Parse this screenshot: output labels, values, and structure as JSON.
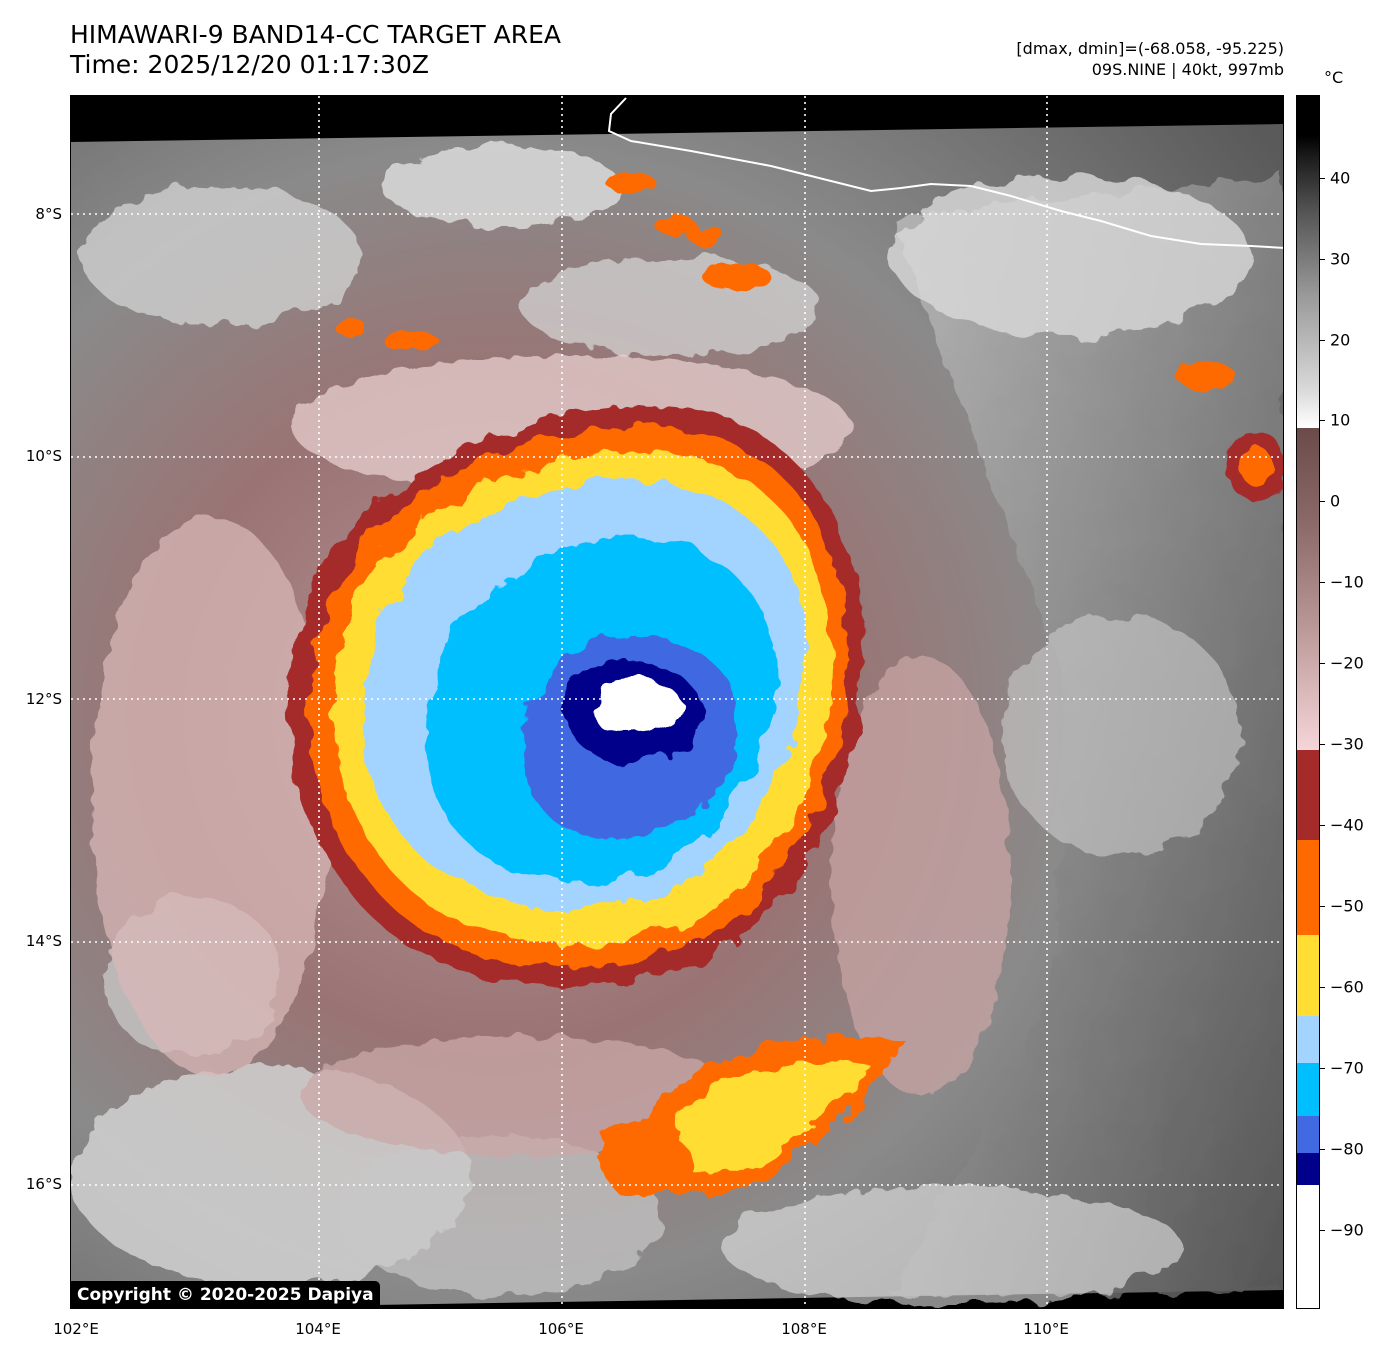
{
  "title": {
    "line1": "HIMAWARI-9 BAND14-CC TARGET AREA",
    "line2": "Time: 2025/12/20 01:17:30Z"
  },
  "info": {
    "line1": "[dmax, dmin]=(-68.058, -95.225)",
    "line2": "09S.NINE | 40kt, 997mb"
  },
  "copyright": "Copyright © 2020-2025 Dapiya",
  "colorbar": {
    "unit": "°C",
    "ticks": [
      "40",
      "30",
      "20",
      "10",
      "0",
      "−10",
      "−20",
      "−30",
      "−40",
      "−50",
      "−60",
      "−70",
      "−80",
      "−90"
    ],
    "colors": {
      "below_minus80": "#ffffff",
      "minus80_to_minus75": "#00008b",
      "minus75_to_minus70": "#4169e1",
      "minus70_to_minus65": "#00bfff",
      "minus65_to_minus60": "#a3d3ff",
      "minus60_to_minus50": "#ffdd33",
      "minus50_to_minus40": "#ff6a00",
      "minus40_to_minus30": "#a52a2a",
      "warm_low": "#f5d6d8",
      "warm_high": "#6b4a4a",
      "gray_low": "#ffffff",
      "gray_high": "#000000"
    }
  },
  "map": {
    "lat_labels": [
      "8°S",
      "10°S",
      "12°S",
      "14°S",
      "16°S"
    ],
    "lon_labels": [
      "102°E",
      "104°E",
      "106°E",
      "108°E",
      "110°E"
    ],
    "storm_name": "09S.NINE"
  }
}
